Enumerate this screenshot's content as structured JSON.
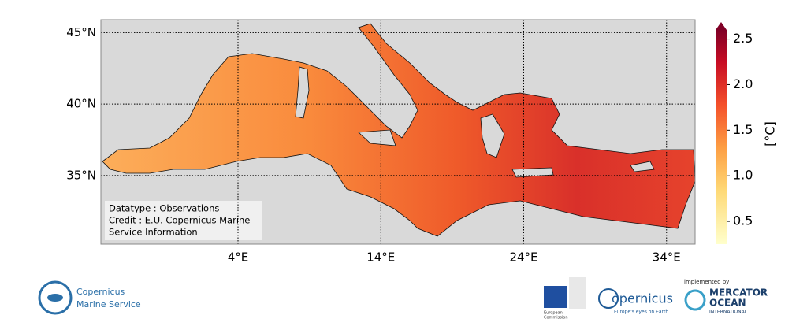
{
  "map": {
    "xlim": [
      -5.6,
      36
    ],
    "ylim": [
      30.2,
      45.9
    ],
    "xticks": [
      {
        "value": 4,
        "label": "4°E"
      },
      {
        "value": 14,
        "label": "14°E"
      },
      {
        "value": 24,
        "label": "24°E"
      },
      {
        "value": 34,
        "label": "34°E"
      }
    ],
    "yticks": [
      {
        "value": 35,
        "label": "35°N"
      },
      {
        "value": 40,
        "label": "40°N"
      },
      {
        "value": 45,
        "label": "45°N"
      }
    ],
    "grid": true,
    "info": [
      "Datatype : Observations",
      "Credit : E.U. Copernicus Marine",
      "Service Information"
    ]
  },
  "colorbar": {
    "label": "[°C]",
    "lim": [
      0.25,
      2.6
    ],
    "ticks": [
      0.5,
      {
        "value": 1,
        "label": "1.0"
      },
      1.5,
      {
        "value": 2,
        "label": "2.0"
      },
      2.5
    ]
  },
  "footer": {
    "copernicus_marine": [
      "Copernicus",
      "Marine Service"
    ],
    "eu": [
      "European",
      "Commission"
    ],
    "copernicus": "opernicus",
    "copernicus_tagline": "Europe's eyes on Earth",
    "implemented_by": "implemented by",
    "mercator": [
      "MERCATOR",
      "OCEAN",
      "INTERNATIONAL"
    ]
  }
}
